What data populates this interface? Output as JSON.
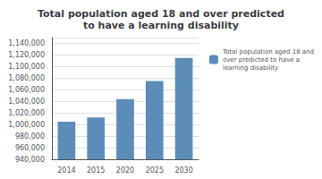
{
  "chart_data": {
    "type": "bar",
    "title": "Total population aged 18 and over predicted\nto have a learning disability",
    "categories": [
      "2014",
      "2015",
      "2020",
      "2025",
      "2030"
    ],
    "series": [
      {
        "name": "Total population aged 18 and\nover predicted to have a\nlearning disability",
        "color": "#5B8DB8",
        "values": [
          1005000,
          1012000,
          1044000,
          1075000,
          1115000
        ]
      }
    ],
    "ylim": [
      940000,
      1150000
    ],
    "yticks": [
      {
        "value": 940000,
        "label": "940,000"
      },
      {
        "value": 960000,
        "label": "960,000"
      },
      {
        "value": 980000,
        "label": "980,000"
      },
      {
        "value": 1000000,
        "label": "1,000,000"
      },
      {
        "value": 1020000,
        "label": "1,020,000"
      },
      {
        "value": 1040000,
        "label": "1,040,000"
      },
      {
        "value": 1060000,
        "label": "1,060,000"
      },
      {
        "value": 1080000,
        "label": "1,080,000"
      },
      {
        "value": 1100000,
        "label": "1,100,000"
      },
      {
        "value": 1120000,
        "label": "1,120,000"
      },
      {
        "value": 1140000,
        "label": "1,140,000"
      }
    ],
    "grid": true,
    "legend": "right"
  }
}
